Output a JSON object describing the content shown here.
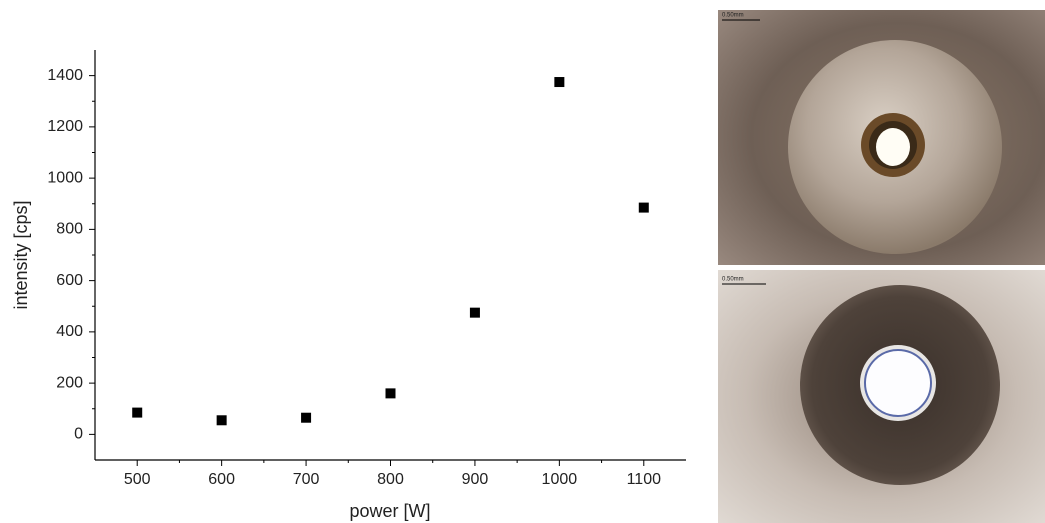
{
  "chart_data": {
    "type": "scatter",
    "x_label": "power [W]",
    "y_label": "intensity [cps]",
    "x": [
      500,
      600,
      700,
      800,
      900,
      1000,
      1100
    ],
    "series": [
      {
        "color": "#000000",
        "values": [
          85,
          55,
          65,
          160,
          475,
          1375,
          885
        ]
      }
    ],
    "xlim": [
      450,
      1150
    ],
    "xticks": [
      500,
      600,
      700,
      800,
      900,
      1000,
      1100
    ],
    "ylim": [
      -100,
      1500
    ],
    "yticks": [
      0,
      200,
      400,
      600,
      800,
      1000,
      1200,
      1400
    ],
    "grid": false
  },
  "images": [
    {
      "scale_label": "0.50mm"
    },
    {
      "scale_label": "0.50mm"
    }
  ]
}
